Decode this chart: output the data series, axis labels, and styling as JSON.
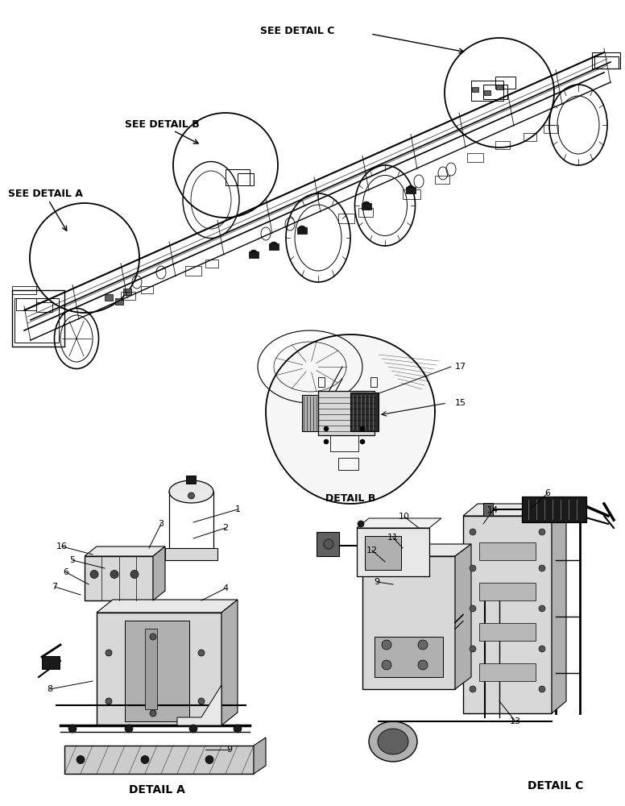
{
  "bg_color": "#ffffff",
  "fig_width": 7.76,
  "fig_height": 10.0,
  "detail_b_label": "DETAIL B",
  "detail_a_label": "DETAIL A",
  "detail_c_label": "DETAIL C",
  "see_detail_a": "SEE DETAIL A",
  "see_detail_b": "SEE DETAIL B",
  "see_detail_c": "SEE DETAIL C",
  "num_17": "17",
  "num_15": "15",
  "callout_nums_a": [
    "1",
    "2",
    "3",
    "4",
    "5",
    "6",
    "7",
    "8",
    "9",
    "16"
  ],
  "callout_nums_c": [
    "6",
    "9",
    "10",
    "11",
    "12",
    "13",
    "14"
  ],
  "label_fontsize": 9,
  "bold_fontsize": 9,
  "callout_fontsize": 8,
  "line_color": "#000000",
  "gray_light": "#d8d8d8",
  "gray_mid": "#b0b0b0",
  "gray_dark": "#606060",
  "gray_fill": "#e8e8e8",
  "black": "#1a1a1a",
  "hatch_gray": "#c8c8c8"
}
